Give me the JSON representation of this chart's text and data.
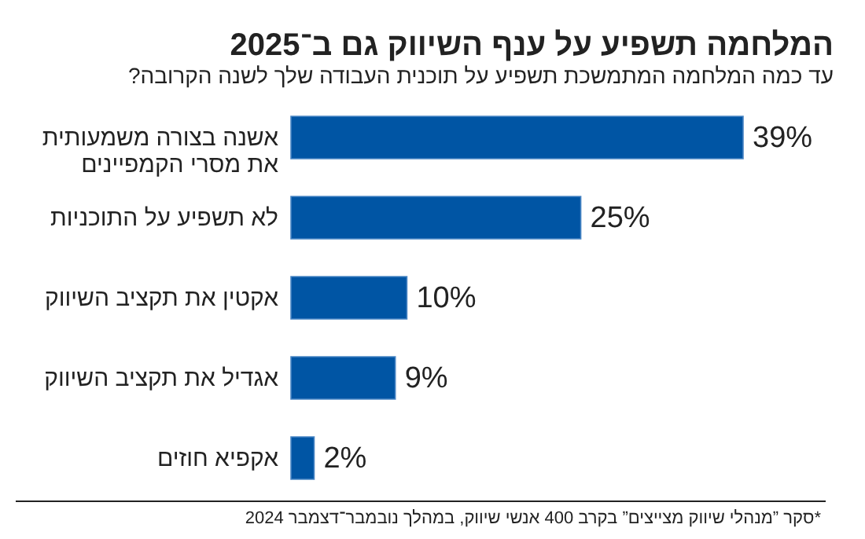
{
  "chart_data": {
    "type": "bar",
    "orientation": "horizontal",
    "title": "המלחמה תשפיע על ענף השיווק גם ב־2025",
    "subtitle": "עד כמה המלחמה המתמשכת תשפיע על תוכנית העבודה שלך לשנה הקרובה?",
    "categories": [
      "אשנה בצורה משמעותית את מסרי הקמפיינים",
      "לא תשפיע על התוכניות",
      "אקטין את תקציב השיווק",
      "אגדיל את תקציב השיווק",
      "אקפיא חוזים"
    ],
    "values": [
      39,
      25,
      10,
      9,
      2
    ],
    "value_labels": [
      "39%",
      "25%",
      "10%",
      "9%",
      "2%"
    ],
    "color": "#0055a4",
    "annotations": [
      "*סקר ”מנהלי שיווק מצייצים” בקרב 400 אנשי שיווק, במהלך נובמבר־דצמבר 2024"
    ]
  }
}
